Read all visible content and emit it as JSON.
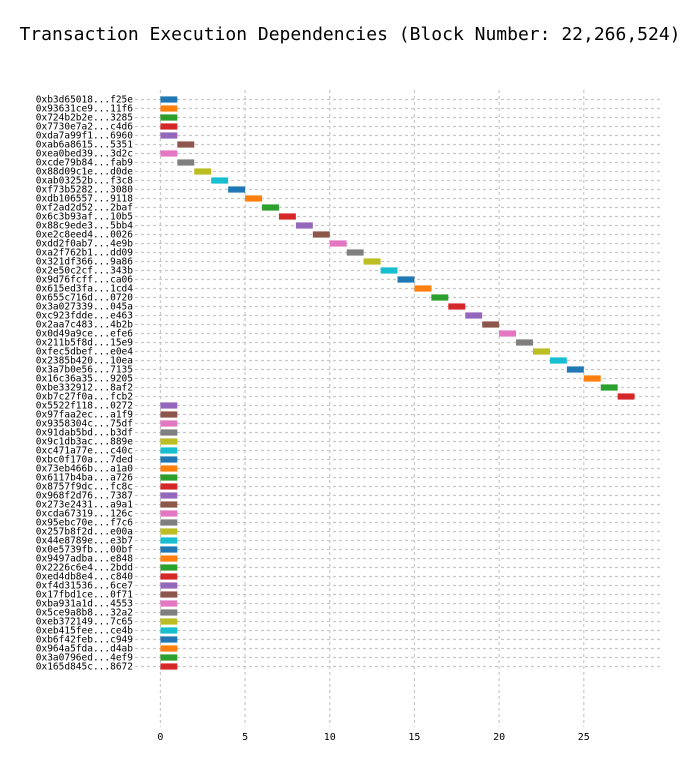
{
  "chart_data": {
    "type": "bar",
    "orientation": "horizontal",
    "title": "Transaction Execution Dependencies (Block Number: 22,266,524)",
    "xlabel": "",
    "ylabel": "",
    "xlim": [
      -1.5,
      29.5
    ],
    "xticks": [
      0,
      5,
      10,
      15,
      20,
      25
    ],
    "grid": true,
    "transactions": [
      {
        "label": "0xb3d65018...f25e",
        "start": 0,
        "end": 1,
        "color": "#1f77b4"
      },
      {
        "label": "0x93631ce9...11f6",
        "start": 0,
        "end": 1,
        "color": "#ff7f0e"
      },
      {
        "label": "0x724b2b2e...3285",
        "start": 0,
        "end": 1,
        "color": "#2ca02c"
      },
      {
        "label": "0x7730e7a2...c4d6",
        "start": 0,
        "end": 1,
        "color": "#d62728"
      },
      {
        "label": "0xda7a99f1...6960",
        "start": 0,
        "end": 1,
        "color": "#9467bd"
      },
      {
        "label": "0xab6a8615...5351",
        "start": 1,
        "end": 2,
        "color": "#8c564b"
      },
      {
        "label": "0xea0bed39...3d2c",
        "start": 0,
        "end": 1,
        "color": "#e377c2"
      },
      {
        "label": "0xcde79b84...fab9",
        "start": 1,
        "end": 2,
        "color": "#7f7f7f"
      },
      {
        "label": "0x88d09c1e...d0de",
        "start": 2,
        "end": 3,
        "color": "#bcbd22"
      },
      {
        "label": "0xab03252b...f3c8",
        "start": 3,
        "end": 4,
        "color": "#17becf"
      },
      {
        "label": "0xf73b5282...3080",
        "start": 4,
        "end": 5,
        "color": "#1f77b4"
      },
      {
        "label": "0xdb106557...9118",
        "start": 5,
        "end": 6,
        "color": "#ff7f0e"
      },
      {
        "label": "0xf2ad2d52...2baf",
        "start": 6,
        "end": 7,
        "color": "#2ca02c"
      },
      {
        "label": "0x6c3b93af...10b5",
        "start": 7,
        "end": 8,
        "color": "#d62728"
      },
      {
        "label": "0x88c9ede3...5bb4",
        "start": 8,
        "end": 9,
        "color": "#9467bd"
      },
      {
        "label": "0xe2c8eed4...0026",
        "start": 9,
        "end": 10,
        "color": "#8c564b"
      },
      {
        "label": "0xdd2f0ab7...4e9b",
        "start": 10,
        "end": 11,
        "color": "#e377c2"
      },
      {
        "label": "0xa2f762b1...dd09",
        "start": 11,
        "end": 12,
        "color": "#7f7f7f"
      },
      {
        "label": "0x321df366...9a86",
        "start": 12,
        "end": 13,
        "color": "#bcbd22"
      },
      {
        "label": "0x2e50c2cf...343b",
        "start": 13,
        "end": 14,
        "color": "#17becf"
      },
      {
        "label": "0x9d76fcff...ca06",
        "start": 14,
        "end": 15,
        "color": "#1f77b4"
      },
      {
        "label": "0x615ed3fa...1cd4",
        "start": 15,
        "end": 16,
        "color": "#ff7f0e"
      },
      {
        "label": "0x655c716d...0720",
        "start": 16,
        "end": 17,
        "color": "#2ca02c"
      },
      {
        "label": "0x3a027339...045a",
        "start": 17,
        "end": 18,
        "color": "#d62728"
      },
      {
        "label": "0xc923fdde...e463",
        "start": 18,
        "end": 19,
        "color": "#9467bd"
      },
      {
        "label": "0x2aa7c483...4b2b",
        "start": 19,
        "end": 20,
        "color": "#8c564b"
      },
      {
        "label": "0x0d49a9ce...efe6",
        "start": 20,
        "end": 21,
        "color": "#e377c2"
      },
      {
        "label": "0x211b5f8d...15e9",
        "start": 21,
        "end": 22,
        "color": "#7f7f7f"
      },
      {
        "label": "0xfec5dbef...e0e4",
        "start": 22,
        "end": 23,
        "color": "#bcbd22"
      },
      {
        "label": "0x2385b420...10ea",
        "start": 23,
        "end": 24,
        "color": "#17becf"
      },
      {
        "label": "0x3a7b0e56...7135",
        "start": 24,
        "end": 25,
        "color": "#1f77b4"
      },
      {
        "label": "0x16c36a35...9205",
        "start": 25,
        "end": 26,
        "color": "#ff7f0e"
      },
      {
        "label": "0xbe332912...8af2",
        "start": 26,
        "end": 27,
        "color": "#2ca02c"
      },
      {
        "label": "0xb7c27f0a...fcb2",
        "start": 27,
        "end": 28,
        "color": "#d62728"
      },
      {
        "label": "0x5522f118...0272",
        "start": 0,
        "end": 1,
        "color": "#9467bd"
      },
      {
        "label": "0x97faa2ec...a1f9",
        "start": 0,
        "end": 1,
        "color": "#8c564b"
      },
      {
        "label": "0x9358304c...75df",
        "start": 0,
        "end": 1,
        "color": "#e377c2"
      },
      {
        "label": "0x91dab5bd...b3df",
        "start": 0,
        "end": 1,
        "color": "#7f7f7f"
      },
      {
        "label": "0x9c1db3ac...889e",
        "start": 0,
        "end": 1,
        "color": "#bcbd22"
      },
      {
        "label": "0xc471a77e...c40c",
        "start": 0,
        "end": 1,
        "color": "#17becf"
      },
      {
        "label": "0xbc0f170a...7ded",
        "start": 0,
        "end": 1,
        "color": "#1f77b4"
      },
      {
        "label": "0x73eb466b...a1a0",
        "start": 0,
        "end": 1,
        "color": "#ff7f0e"
      },
      {
        "label": "0x6117b4ba...a726",
        "start": 0,
        "end": 1,
        "color": "#2ca02c"
      },
      {
        "label": "0x8757f9dc...fc8c",
        "start": 0,
        "end": 1,
        "color": "#d62728"
      },
      {
        "label": "0x968f2d76...7387",
        "start": 0,
        "end": 1,
        "color": "#9467bd"
      },
      {
        "label": "0x273e2431...a9a1",
        "start": 0,
        "end": 1,
        "color": "#8c564b"
      },
      {
        "label": "0xcda67319...126c",
        "start": 0,
        "end": 1,
        "color": "#e377c2"
      },
      {
        "label": "0x95ebc70e...f7c6",
        "start": 0,
        "end": 1,
        "color": "#7f7f7f"
      },
      {
        "label": "0x257b8f2d...e00a",
        "start": 0,
        "end": 1,
        "color": "#bcbd22"
      },
      {
        "label": "0x44e8789e...e3b7",
        "start": 0,
        "end": 1,
        "color": "#17becf"
      },
      {
        "label": "0x0e5739fb...00bf",
        "start": 0,
        "end": 1,
        "color": "#1f77b4"
      },
      {
        "label": "0x9497adba...e848",
        "start": 0,
        "end": 1,
        "color": "#ff7f0e"
      },
      {
        "label": "0x2226c6e4...2bdd",
        "start": 0,
        "end": 1,
        "color": "#2ca02c"
      },
      {
        "label": "0xed4db8e4...c840",
        "start": 0,
        "end": 1,
        "color": "#d62728"
      },
      {
        "label": "0xf4d31536...6ce7",
        "start": 0,
        "end": 1,
        "color": "#9467bd"
      },
      {
        "label": "0x17fbd1ce...0f71",
        "start": 0,
        "end": 1,
        "color": "#8c564b"
      },
      {
        "label": "0xba931a1d...4553",
        "start": 0,
        "end": 1,
        "color": "#e377c2"
      },
      {
        "label": "0x5ce9a8b8...32a2",
        "start": 0,
        "end": 1,
        "color": "#7f7f7f"
      },
      {
        "label": "0xeb372149...7c65",
        "start": 0,
        "end": 1,
        "color": "#bcbd22"
      },
      {
        "label": "0xeb415fee...ce4b",
        "start": 0,
        "end": 1,
        "color": "#17becf"
      },
      {
        "label": "0xb6f42feb...c949",
        "start": 0,
        "end": 1,
        "color": "#1f77b4"
      },
      {
        "label": "0x964a5fda...d4ab",
        "start": 0,
        "end": 1,
        "color": "#ff7f0e"
      },
      {
        "label": "0x3a0796ed...4ef9",
        "start": 0,
        "end": 1,
        "color": "#2ca02c"
      },
      {
        "label": "0x165d845c...8672",
        "start": 0,
        "end": 1,
        "color": "#d62728"
      }
    ]
  }
}
